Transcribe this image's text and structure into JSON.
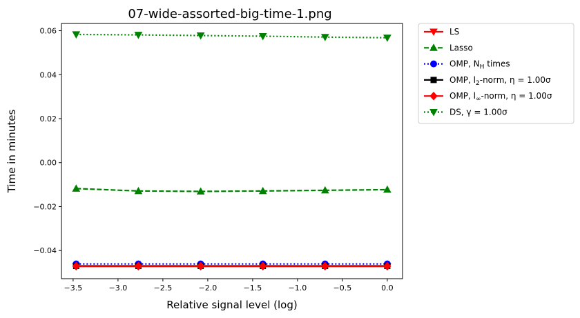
{
  "chart_data": {
    "type": "line",
    "title": "07-wide-assorted-big-time-1.png",
    "xlabel": "Relative signal level (log)",
    "ylabel": "Time in minutes",
    "xlim": [
      -3.63,
      0.17
    ],
    "ylim": [
      -0.0528,
      0.0633
    ],
    "grid": false,
    "legend_position": "outside-right-top",
    "xticks": [
      -3.5,
      -3.0,
      -2.5,
      -2.0,
      -1.5,
      -1.0,
      -0.5,
      0.0
    ],
    "xtick_labels": [
      "−3.5",
      "−3.0",
      "−2.5",
      "−2.0",
      "−1.5",
      "−1.0",
      "−0.5",
      "0.0"
    ],
    "yticks": [
      -0.04,
      -0.02,
      0.0,
      0.02,
      0.04,
      0.06
    ],
    "ytick_labels": [
      "−0.04",
      "−0.02",
      "0.00",
      "0.02",
      "0.04",
      "0.06"
    ],
    "x": [
      -3.466,
      -2.773,
      -2.079,
      -1.386,
      -0.693,
      0.0
    ],
    "series": [
      {
        "name": "LS",
        "color": "#ff0000",
        "dash": "solid",
        "marker": "triangle-down",
        "values": [
          -0.0472,
          -0.0472,
          -0.0472,
          -0.0472,
          -0.0472,
          -0.0472
        ]
      },
      {
        "name": "Lasso",
        "color": "#008000",
        "dash": "dashed",
        "marker": "triangle-up",
        "values": [
          -0.0118,
          -0.0129,
          -0.0131,
          -0.0129,
          -0.0126,
          -0.0123
        ]
      },
      {
        "name": "OMP, N_H times",
        "color": "#0000ff",
        "dash": "dotted",
        "marker": "circle",
        "values": [
          -0.0461,
          -0.0461,
          -0.0461,
          -0.0461,
          -0.0461,
          -0.0461
        ]
      },
      {
        "name": "OMP, l_2-norm, η = 1.00σ",
        "color": "#000000",
        "dash": "solid",
        "marker": "square",
        "values": [
          -0.047,
          -0.047,
          -0.047,
          -0.047,
          -0.047,
          -0.047
        ]
      },
      {
        "name": "OMP, l_∞-norm, η = 1.00σ",
        "color": "#ff0000",
        "dash": "solid",
        "marker": "diamond",
        "values": [
          -0.0471,
          -0.0471,
          -0.0471,
          -0.0471,
          -0.0471,
          -0.0471
        ]
      },
      {
        "name": "DS, γ = 1.00σ",
        "color": "#008000",
        "dash": "dotted",
        "marker": "triangle-down",
        "values": [
          0.0583,
          0.0581,
          0.0578,
          0.0575,
          0.0571,
          0.0568
        ]
      }
    ]
  },
  "legend": [
    {
      "main": "LS",
      "sub": "",
      "tail": ""
    },
    {
      "main": "Lasso",
      "sub": "",
      "tail": ""
    },
    {
      "main": "OMP, N",
      "sub": "H",
      "tail": " times"
    },
    {
      "main": "OMP, l",
      "sub": "2",
      "tail": "-norm, η = 1.00σ"
    },
    {
      "main": "OMP, l",
      "sub": "∞",
      "tail": "-norm, η = 1.00σ"
    },
    {
      "main": "DS, γ = 1.00σ",
      "sub": "",
      "tail": ""
    }
  ]
}
